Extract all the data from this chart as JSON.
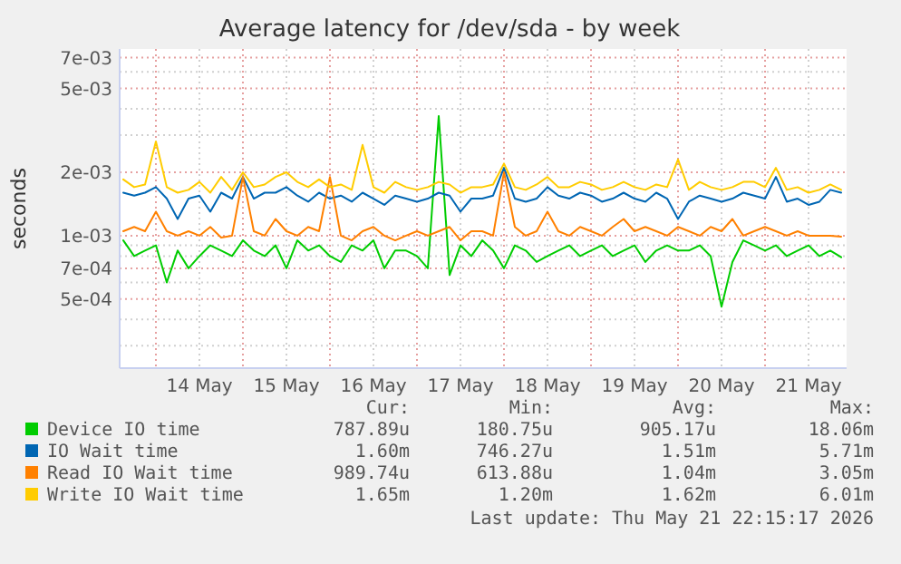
{
  "chart_data": {
    "type": "line",
    "title": "Average latency for /dev/sda - by week",
    "ylabel": "seconds",
    "log": true,
    "grid": true,
    "legend": "bottom",
    "xlim": [
      "2026-05-13T14:00",
      "2026-05-21T22:30"
    ],
    "ylim": [
      0.000235,
      0.0077
    ],
    "xticks": [
      {
        "value": "2026-05-14T00:00",
        "label": null
      },
      {
        "value": "2026-05-14T12:00",
        "label": "14 May"
      },
      {
        "value": "2026-05-15T00:00",
        "label": null
      },
      {
        "value": "2026-05-15T12:00",
        "label": "15 May"
      },
      {
        "value": "2026-05-16T00:00",
        "label": null
      },
      {
        "value": "2026-05-16T12:00",
        "label": "16 May"
      },
      {
        "value": "2026-05-17T00:00",
        "label": null
      },
      {
        "value": "2026-05-17T12:00",
        "label": "17 May"
      },
      {
        "value": "2026-05-18T00:00",
        "label": null
      },
      {
        "value": "2026-05-18T12:00",
        "label": "18 May"
      },
      {
        "value": "2026-05-19T00:00",
        "label": null
      },
      {
        "value": "2026-05-19T12:00",
        "label": "19 May"
      },
      {
        "value": "2026-05-20T00:00",
        "label": null
      },
      {
        "value": "2026-05-20T12:00",
        "label": "20 May"
      },
      {
        "value": "2026-05-21T00:00",
        "label": null
      },
      {
        "value": "2026-05-21T12:00",
        "label": "21 May"
      }
    ],
    "yticks": [
      {
        "value": 0.0003,
        "label": null
      },
      {
        "value": 0.0004,
        "label": null
      },
      {
        "value": 0.0005,
        "label": "5e-04"
      },
      {
        "value": 0.0006,
        "label": null
      },
      {
        "value": 0.0007,
        "label": "7e-04"
      },
      {
        "value": 0.0008,
        "label": null
      },
      {
        "value": 0.0009,
        "label": null
      },
      {
        "value": 0.001,
        "label": "1e-03"
      },
      {
        "value": 0.002,
        "label": "2e-03"
      },
      {
        "value": 0.003,
        "label": null
      },
      {
        "value": 0.004,
        "label": null
      },
      {
        "value": 0.005,
        "label": "5e-03"
      },
      {
        "value": 0.006,
        "label": null
      },
      {
        "value": 0.007,
        "label": "7e-03"
      }
    ],
    "x": [
      "2026-05-13T15:00",
      "2026-05-13T18:00",
      "2026-05-13T21:00",
      "2026-05-14T00:00",
      "2026-05-14T03:00",
      "2026-05-14T06:00",
      "2026-05-14T09:00",
      "2026-05-14T12:00",
      "2026-05-14T15:00",
      "2026-05-14T18:00",
      "2026-05-14T21:00",
      "2026-05-15T00:00",
      "2026-05-15T03:00",
      "2026-05-15T06:00",
      "2026-05-15T09:00",
      "2026-05-15T12:00",
      "2026-05-15T15:00",
      "2026-05-15T18:00",
      "2026-05-15T21:00",
      "2026-05-16T00:00",
      "2026-05-16T03:00",
      "2026-05-16T06:00",
      "2026-05-16T09:00",
      "2026-05-16T12:00",
      "2026-05-16T15:00",
      "2026-05-16T18:00",
      "2026-05-16T21:00",
      "2026-05-17T00:00",
      "2026-05-17T03:00",
      "2026-05-17T06:00",
      "2026-05-17T09:00",
      "2026-05-17T12:00",
      "2026-05-17T15:00",
      "2026-05-17T18:00",
      "2026-05-17T21:00",
      "2026-05-18T00:00",
      "2026-05-18T03:00",
      "2026-05-18T06:00",
      "2026-05-18T09:00",
      "2026-05-18T12:00",
      "2026-05-18T15:00",
      "2026-05-18T18:00",
      "2026-05-18T21:00",
      "2026-05-19T00:00",
      "2026-05-19T03:00",
      "2026-05-19T06:00",
      "2026-05-19T09:00",
      "2026-05-19T12:00",
      "2026-05-19T15:00",
      "2026-05-19T18:00",
      "2026-05-19T21:00",
      "2026-05-20T00:00",
      "2026-05-20T03:00",
      "2026-05-20T06:00",
      "2026-05-20T09:00",
      "2026-05-20T12:00",
      "2026-05-20T15:00",
      "2026-05-20T18:00",
      "2026-05-20T21:00",
      "2026-05-21T00:00",
      "2026-05-21T03:00",
      "2026-05-21T06:00",
      "2026-05-21T09:00",
      "2026-05-21T12:00",
      "2026-05-21T15:00",
      "2026-05-21T18:00",
      "2026-05-21T21:00"
    ],
    "series": [
      {
        "name": "Device IO time",
        "color": "#00cc00",
        "values": [
          0.00095,
          0.0008,
          0.00085,
          0.0009,
          0.0006,
          0.00085,
          0.0007,
          0.0008,
          0.0009,
          0.00085,
          0.0008,
          0.00095,
          0.00085,
          0.0008,
          0.0009,
          0.0007,
          0.00095,
          0.00085,
          0.0009,
          0.0008,
          0.00075,
          0.0009,
          0.00085,
          0.00095,
          0.0007,
          0.00085,
          0.00085,
          0.0008,
          0.0007,
          0.0037,
          0.00065,
          0.0009,
          0.0008,
          0.00095,
          0.00085,
          0.0007,
          0.0009,
          0.00085,
          0.00075,
          0.0008,
          0.00085,
          0.0009,
          0.0008,
          0.00085,
          0.0009,
          0.0008,
          0.00085,
          0.0009,
          0.00075,
          0.00085,
          0.0009,
          0.00085,
          0.00085,
          0.0009,
          0.0008,
          0.00046,
          0.00075,
          0.00095,
          0.0009,
          0.00085,
          0.0009,
          0.0008,
          0.00085,
          0.0009,
          0.0008,
          0.00085,
          0.00079
        ]
      },
      {
        "name": "IO Wait time",
        "color": "#0066b3",
        "values": [
          0.0016,
          0.00155,
          0.0016,
          0.0017,
          0.0015,
          0.0012,
          0.0015,
          0.00155,
          0.0013,
          0.0016,
          0.0015,
          0.0019,
          0.0015,
          0.0016,
          0.0016,
          0.0017,
          0.00155,
          0.00145,
          0.0016,
          0.0015,
          0.00155,
          0.00145,
          0.0016,
          0.0015,
          0.0014,
          0.00155,
          0.0015,
          0.00145,
          0.0015,
          0.0016,
          0.00155,
          0.0013,
          0.0015,
          0.0015,
          0.00155,
          0.0021,
          0.0015,
          0.00145,
          0.0015,
          0.0017,
          0.00155,
          0.0015,
          0.0016,
          0.00155,
          0.00145,
          0.0015,
          0.0016,
          0.0015,
          0.00145,
          0.0016,
          0.0015,
          0.0012,
          0.00145,
          0.00155,
          0.0015,
          0.00145,
          0.0015,
          0.0016,
          0.00155,
          0.0015,
          0.0019,
          0.00145,
          0.0015,
          0.0014,
          0.00145,
          0.00165,
          0.0016
        ]
      },
      {
        "name": "Read IO Wait time",
        "color": "#ff8000",
        "values": [
          0.00105,
          0.0011,
          0.00105,
          0.0013,
          0.00105,
          0.001,
          0.00105,
          0.001,
          0.0011,
          0.00098,
          0.001,
          0.0019,
          0.00105,
          0.001,
          0.0012,
          0.00105,
          0.001,
          0.0011,
          0.00105,
          0.0019,
          0.001,
          0.00095,
          0.00105,
          0.0011,
          0.001,
          0.00095,
          0.001,
          0.00105,
          0.001,
          0.00105,
          0.0011,
          0.00095,
          0.00105,
          0.00105,
          0.001,
          0.002,
          0.0011,
          0.001,
          0.00105,
          0.0013,
          0.00105,
          0.001,
          0.0011,
          0.00105,
          0.001,
          0.0011,
          0.0012,
          0.00105,
          0.0011,
          0.00105,
          0.001,
          0.0011,
          0.00105,
          0.001,
          0.0011,
          0.00105,
          0.0012,
          0.001,
          0.00105,
          0.0011,
          0.00105,
          0.001,
          0.00105,
          0.001,
          0.001,
          0.001,
          0.00099
        ]
      },
      {
        "name": "Write IO Wait time",
        "color": "#ffcc00",
        "values": [
          0.00185,
          0.0017,
          0.00175,
          0.0028,
          0.0017,
          0.0016,
          0.00165,
          0.0018,
          0.0016,
          0.0019,
          0.00165,
          0.002,
          0.0017,
          0.00175,
          0.0019,
          0.002,
          0.0018,
          0.0017,
          0.00185,
          0.0017,
          0.00175,
          0.00165,
          0.0027,
          0.0017,
          0.0016,
          0.0018,
          0.0017,
          0.00165,
          0.0017,
          0.0018,
          0.00175,
          0.0016,
          0.0017,
          0.0017,
          0.00175,
          0.0022,
          0.0017,
          0.00165,
          0.00175,
          0.0019,
          0.0017,
          0.0017,
          0.0018,
          0.00175,
          0.00165,
          0.0017,
          0.0018,
          0.0017,
          0.00165,
          0.00175,
          0.0017,
          0.0023,
          0.00165,
          0.0018,
          0.0017,
          0.00165,
          0.0017,
          0.0018,
          0.0018,
          0.0017,
          0.0021,
          0.00165,
          0.0017,
          0.0016,
          0.00165,
          0.00175,
          0.00165
        ]
      }
    ],
    "annotations": [
      "Cur:",
      "Min:",
      "Avg:",
      "Max:",
      "787.89u",
      "180.75u",
      "905.17u",
      "18.06m",
      "1.60m",
      "746.27u",
      "1.51m",
      "5.71m",
      "989.74u",
      "613.88u",
      "1.04m",
      "3.05m",
      "1.65m",
      "1.20m",
      "1.62m",
      "6.01m",
      "Last update: Thu May 21 22:15:17 2026"
    ]
  }
}
